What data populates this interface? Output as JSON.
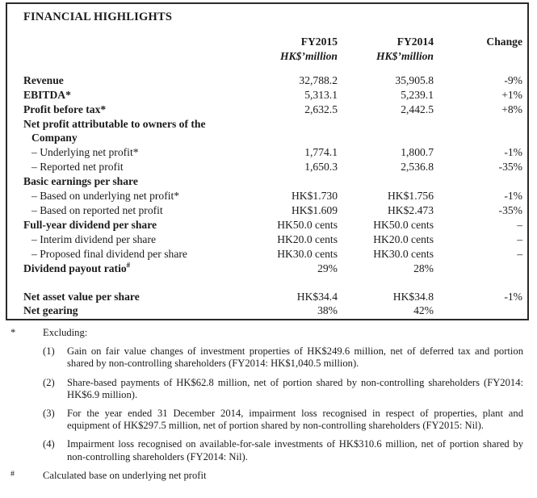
{
  "title": "FINANCIAL HIGHLIGHTS",
  "table": {
    "columns": {
      "fy2015": "FY2015",
      "fy2014": "FY2014",
      "change": "Change",
      "unit": "HK$’million"
    },
    "rows": [
      {
        "label": "Revenue",
        "bold": true,
        "fy2015": "32,788.2",
        "fy2014": "35,905.8",
        "change": "-9%"
      },
      {
        "label": "EBITDA*",
        "bold": true,
        "fy2015": "5,313.1",
        "fy2014": "5,239.1",
        "change": "+1%"
      },
      {
        "label": "Profit before tax*",
        "bold": true,
        "fy2015": "2,632.5",
        "fy2014": "2,442.5",
        "change": "+8%"
      },
      {
        "label": "Net profit attributable to owners of the",
        "bold": true
      },
      {
        "label": "Company",
        "bold": true,
        "indent": 1
      },
      {
        "label": "– Underlying net profit*",
        "indent": 1,
        "fy2015": "1,774.1",
        "fy2014": "1,800.7",
        "change": "-1%"
      },
      {
        "label": "– Reported net profit",
        "indent": 1,
        "fy2015": "1,650.3",
        "fy2014": "2,536.8",
        "change": "-35%"
      },
      {
        "label": "Basic earnings per share",
        "bold": true
      },
      {
        "label": "– Based on underlying net profit*",
        "indent": 1,
        "fy2015": "HK$1.730",
        "fy2014": "HK$1.756",
        "change": "-1%"
      },
      {
        "label": "– Based on reported net profit",
        "indent": 1,
        "fy2015": "HK$1.609",
        "fy2014": "HK$2.473",
        "change": "-35%"
      },
      {
        "label": "Full-year dividend per share",
        "bold": true,
        "fy2015": "HK50.0 cents",
        "fy2014": "HK50.0 cents",
        "change": "–"
      },
      {
        "label": "– Interim dividend per share",
        "indent": 1,
        "fy2015": "HK20.0 cents",
        "fy2014": "HK20.0 cents",
        "change": "–"
      },
      {
        "label": "– Proposed final dividend per share",
        "indent": 1,
        "fy2015": "HK30.0 cents",
        "fy2014": "HK30.0 cents",
        "change": "–"
      },
      {
        "label": "Dividend payout ratio",
        "sup": "#",
        "bold": true,
        "fy2015": "29%",
        "fy2014": "28%"
      },
      {
        "spacer": true
      },
      {
        "label": "Net asset value per share",
        "bold": true,
        "fy2015": "HK$34.4",
        "fy2014": "HK$34.8",
        "change": "-1%"
      },
      {
        "label": "Net gearing",
        "bold": true,
        "fy2015": "38%",
        "fy2014": "42%"
      }
    ]
  },
  "footnotes": {
    "star": {
      "marker": "*",
      "text": "Excluding:"
    },
    "items": [
      {
        "num": "(1)",
        "text": "Gain on fair value changes of investment properties of HK$249.6 million, net of deferred tax and portion shared by non-controlling shareholders (FY2014: HK$1,040.5 million)."
      },
      {
        "num": "(2)",
        "text": "Share-based payments of HK$62.8 million, net of portion shared by non-controlling shareholders (FY2014: HK$6.9 million)."
      },
      {
        "num": "(3)",
        "text": "For the year ended 31 December 2014, impairment loss recognised in respect of properties, plant and equipment of HK$297.5 million, net of portion shared by non-controlling shareholders (FY2015: Nil)."
      },
      {
        "num": "(4)",
        "text": "Impairment loss recognised on available-for-sale investments of HK$310.6 million, net of portion shared by non-controlling shareholders (FY2014: Nil)."
      }
    ],
    "hash": {
      "marker": "#",
      "text": "Calculated base on underlying net profit"
    }
  }
}
